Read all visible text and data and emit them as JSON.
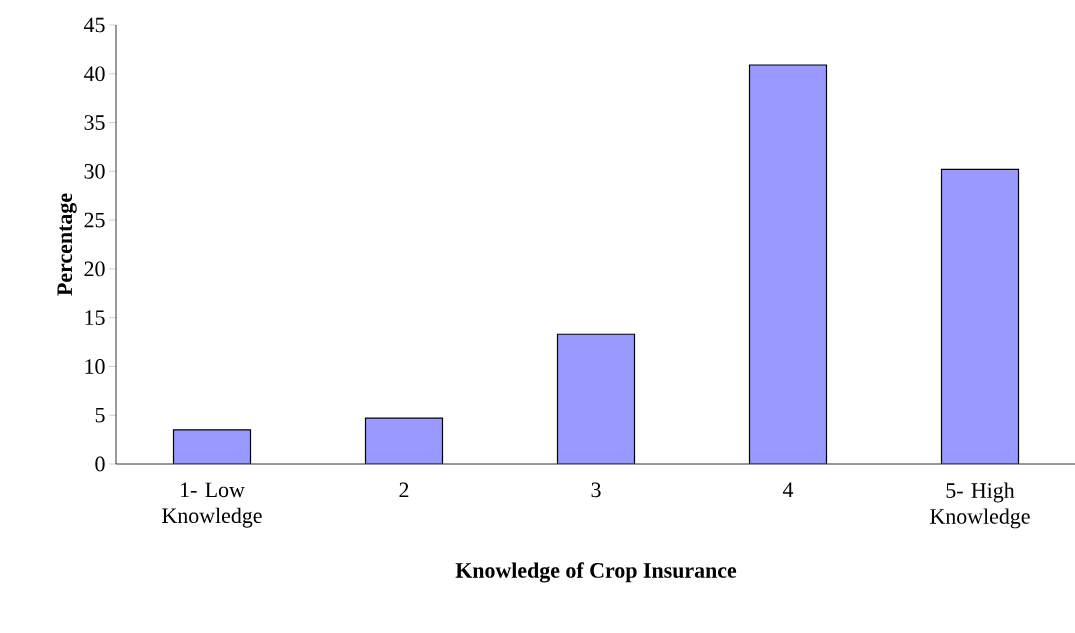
{
  "chart_data": {
    "type": "bar",
    "xlabel": "Knowledge of Crop Insurance",
    "ylabel": "Percentage",
    "categories": [
      "1- Low Knowledge",
      "2",
      "3",
      "4",
      "5- High Knowledge"
    ],
    "values": [
      3.5,
      4.7,
      13.3,
      40.9,
      30.2
    ],
    "color": "#9999ff",
    "ylim": [
      0,
      45
    ],
    "yticks": [
      0,
      5,
      10,
      15,
      20,
      25,
      30,
      35,
      40,
      45
    ],
    "grid": false
  }
}
